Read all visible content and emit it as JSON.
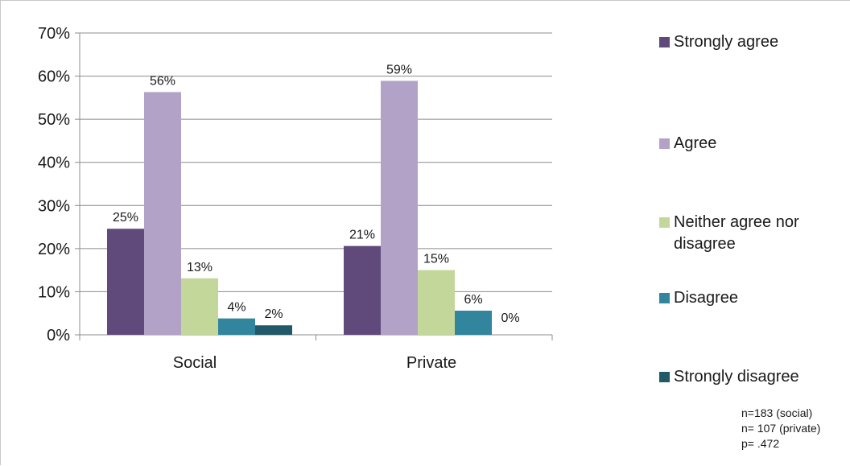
{
  "chart_data": {
    "type": "bar",
    "categories": [
      "Social",
      "Private"
    ],
    "series": [
      {
        "name": "Strongly agree",
        "values": [
          24.6,
          20.6
        ],
        "labels": [
          "25%",
          "21%"
        ],
        "color": "#604a7b"
      },
      {
        "name": "Agree",
        "values": [
          56.3,
          58.9
        ],
        "labels": [
          "56%",
          "59%"
        ],
        "color": "#b3a2c7"
      },
      {
        "name": "Neither agree nor disagree",
        "values": [
          13.1,
          15.0
        ],
        "labels": [
          "13%",
          "15%"
        ],
        "color": "#c4d79b"
      },
      {
        "name": "Disagree",
        "values": [
          3.8,
          5.6
        ],
        "labels": [
          "4%",
          "6%"
        ],
        "color": "#31859c"
      },
      {
        "name": "Strongly disagree",
        "values": [
          2.2,
          0.0
        ],
        "labels": [
          "2%",
          "0%"
        ],
        "color": "#215968"
      }
    ],
    "yticks": [
      "0%",
      "10%",
      "20%",
      "30%",
      "40%",
      "50%",
      "60%",
      "70%"
    ],
    "ylim": [
      0,
      70
    ],
    "grid": true,
    "legend": "right",
    "notes": [
      "n=183 (social)",
      "n= 107 (private)",
      "p= .472"
    ]
  }
}
